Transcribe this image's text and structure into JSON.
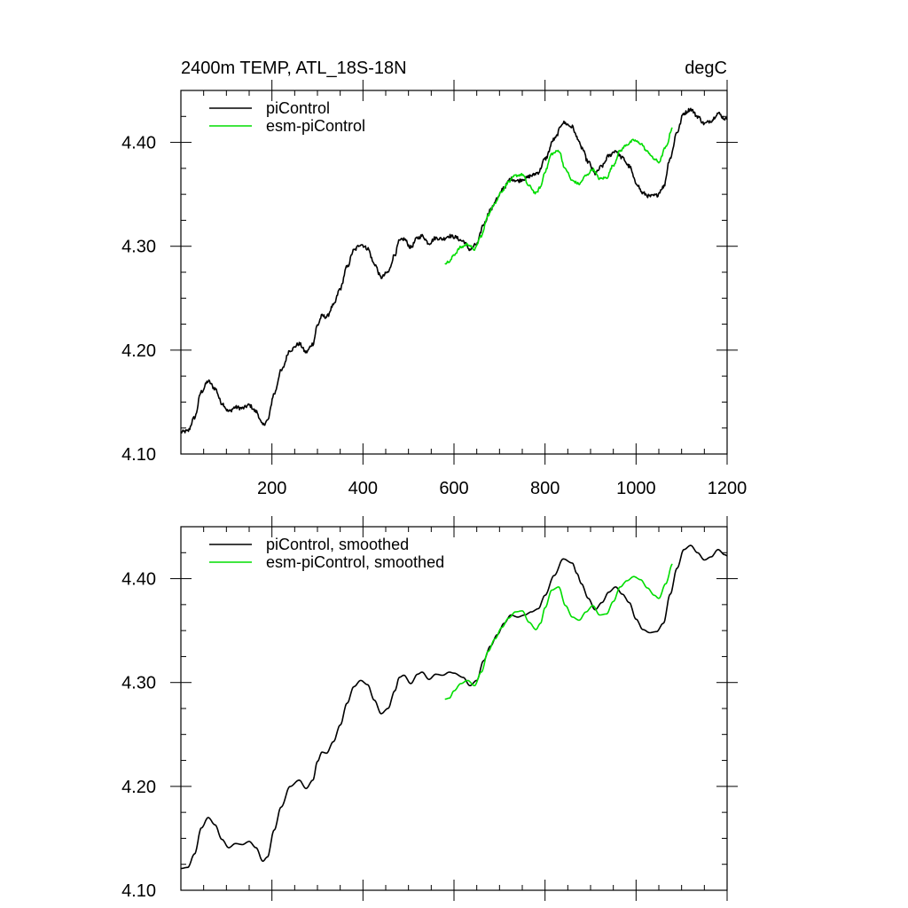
{
  "chart_data": [
    {
      "type": "line",
      "title_left": "2400m TEMP, ATL_18S-18N",
      "title_right": "degC",
      "xlabel": "",
      "ylabel": "",
      "xlim": [
        0,
        1200
      ],
      "ylim": [
        4.1,
        4.45
      ],
      "xticks": [
        200,
        400,
        600,
        800,
        1000,
        1200
      ],
      "xtick_labels": [
        "200",
        "400",
        "600",
        "800",
        "1000",
        "1200"
      ],
      "yticks": [
        4.1,
        4.2,
        4.3,
        4.4
      ],
      "ytick_labels": [
        "4.10",
        "4.20",
        "4.30",
        "4.40"
      ],
      "legend_position": "top-left",
      "series": [
        {
          "name": "piControl",
          "color": "#000000",
          "noise": 0.0018,
          "x": [
            0,
            15,
            30,
            45,
            60,
            75,
            90,
            105,
            120,
            135,
            150,
            165,
            180,
            190,
            205,
            220,
            240,
            260,
            275,
            290,
            300,
            310,
            320,
            335,
            350,
            365,
            380,
            395,
            410,
            425,
            440,
            455,
            470,
            480,
            490,
            505,
            520,
            530,
            545,
            560,
            575,
            590,
            600,
            620,
            635,
            650,
            665,
            680,
            695,
            710,
            725,
            740,
            755,
            770,
            785,
            800,
            820,
            840,
            860,
            870,
            880,
            895,
            910,
            925,
            940,
            955,
            970,
            985,
            1000,
            1015,
            1030,
            1045,
            1060,
            1075,
            1090,
            1105,
            1120,
            1135,
            1150,
            1165,
            1180,
            1195,
            1200
          ],
          "values": [
            4.121,
            4.122,
            4.135,
            4.16,
            4.17,
            4.163,
            4.149,
            4.141,
            4.145,
            4.144,
            4.147,
            4.141,
            4.128,
            4.132,
            4.158,
            4.18,
            4.2,
            4.206,
            4.198,
            4.206,
            4.224,
            4.233,
            4.232,
            4.243,
            4.259,
            4.28,
            4.296,
            4.302,
            4.298,
            4.283,
            4.27,
            4.275,
            4.292,
            4.305,
            4.307,
            4.299,
            4.308,
            4.31,
            4.303,
            4.308,
            4.307,
            4.31,
            4.309,
            4.305,
            4.297,
            4.302,
            4.321,
            4.335,
            4.346,
            4.357,
            4.365,
            4.363,
            4.365,
            4.368,
            4.371,
            4.384,
            4.403,
            4.419,
            4.415,
            4.405,
            4.395,
            4.381,
            4.37,
            4.377,
            4.387,
            4.392,
            4.385,
            4.377,
            4.361,
            4.351,
            4.348,
            4.349,
            4.357,
            4.385,
            4.41,
            4.428,
            4.432,
            4.425,
            4.418,
            4.421,
            4.428,
            4.423,
            4.422
          ]
        },
        {
          "name": "esm-piControl",
          "color": "#00dd00",
          "noise": 0.0012,
          "x": [
            580,
            590,
            600,
            615,
            630,
            645,
            660,
            675,
            690,
            705,
            720,
            735,
            750,
            765,
            780,
            790,
            800,
            815,
            830,
            845,
            860,
            875,
            890,
            905,
            920,
            935,
            950,
            965,
            980,
            995,
            1010,
            1025,
            1040,
            1050,
            1065,
            1080
          ],
          "values": [
            4.284,
            4.285,
            4.292,
            4.299,
            4.302,
            4.297,
            4.31,
            4.33,
            4.342,
            4.353,
            4.362,
            4.368,
            4.369,
            4.358,
            4.351,
            4.357,
            4.372,
            4.389,
            4.392,
            4.374,
            4.363,
            4.36,
            4.368,
            4.374,
            4.365,
            4.366,
            4.378,
            4.392,
            4.398,
            4.402,
            4.399,
            4.391,
            4.384,
            4.381,
            4.395,
            4.414
          ]
        }
      ]
    },
    {
      "type": "line",
      "xlim": [
        0,
        1200
      ],
      "ylim": [
        4.1,
        4.45
      ],
      "xticks": [
        200,
        400,
        600,
        800,
        1000,
        1200
      ],
      "xtick_labels": [],
      "yticks": [
        4.1,
        4.2,
        4.3,
        4.4
      ],
      "ytick_labels": [
        "4.10",
        "4.20",
        "4.30",
        "4.40"
      ],
      "legend_position": "top-left",
      "series": [
        {
          "name": "piControl, smoothed",
          "color": "#000000",
          "noise": 0,
          "x": [
            0,
            15,
            30,
            45,
            60,
            75,
            90,
            105,
            120,
            135,
            150,
            165,
            180,
            190,
            205,
            220,
            240,
            260,
            275,
            290,
            300,
            310,
            320,
            335,
            350,
            365,
            380,
            395,
            410,
            425,
            440,
            455,
            470,
            480,
            490,
            505,
            520,
            530,
            545,
            560,
            575,
            590,
            600,
            620,
            635,
            650,
            665,
            680,
            695,
            710,
            725,
            740,
            755,
            770,
            785,
            800,
            820,
            840,
            860,
            870,
            880,
            895,
            910,
            925,
            940,
            955,
            970,
            985,
            1000,
            1015,
            1030,
            1045,
            1060,
            1075,
            1090,
            1105,
            1120,
            1135,
            1150,
            1165,
            1180,
            1195,
            1200
          ],
          "values": [
            4.121,
            4.122,
            4.135,
            4.16,
            4.17,
            4.163,
            4.149,
            4.141,
            4.145,
            4.144,
            4.147,
            4.141,
            4.128,
            4.132,
            4.158,
            4.18,
            4.2,
            4.206,
            4.198,
            4.206,
            4.224,
            4.233,
            4.232,
            4.243,
            4.259,
            4.28,
            4.296,
            4.302,
            4.298,
            4.283,
            4.27,
            4.275,
            4.292,
            4.305,
            4.307,
            4.299,
            4.308,
            4.31,
            4.303,
            4.308,
            4.307,
            4.31,
            4.309,
            4.305,
            4.297,
            4.302,
            4.321,
            4.335,
            4.346,
            4.357,
            4.365,
            4.363,
            4.365,
            4.368,
            4.371,
            4.384,
            4.403,
            4.419,
            4.415,
            4.405,
            4.395,
            4.381,
            4.37,
            4.377,
            4.387,
            4.392,
            4.385,
            4.377,
            4.361,
            4.351,
            4.348,
            4.349,
            4.357,
            4.385,
            4.41,
            4.428,
            4.432,
            4.425,
            4.418,
            4.421,
            4.428,
            4.423,
            4.422
          ]
        },
        {
          "name": "esm-piControl, smoothed",
          "color": "#00dd00",
          "noise": 0,
          "x": [
            580,
            590,
            600,
            615,
            630,
            645,
            660,
            675,
            690,
            705,
            720,
            735,
            750,
            765,
            780,
            790,
            800,
            815,
            830,
            845,
            860,
            875,
            890,
            905,
            920,
            935,
            950,
            965,
            980,
            995,
            1010,
            1025,
            1040,
            1050,
            1065,
            1080
          ],
          "values": [
            4.284,
            4.285,
            4.292,
            4.299,
            4.302,
            4.297,
            4.31,
            4.33,
            4.342,
            4.353,
            4.362,
            4.368,
            4.369,
            4.358,
            4.351,
            4.357,
            4.372,
            4.389,
            4.392,
            4.374,
            4.363,
            4.36,
            4.368,
            4.374,
            4.365,
            4.366,
            4.378,
            4.392,
            4.398,
            4.402,
            4.399,
            4.391,
            4.384,
            4.381,
            4.395,
            4.414
          ]
        }
      ]
    }
  ]
}
